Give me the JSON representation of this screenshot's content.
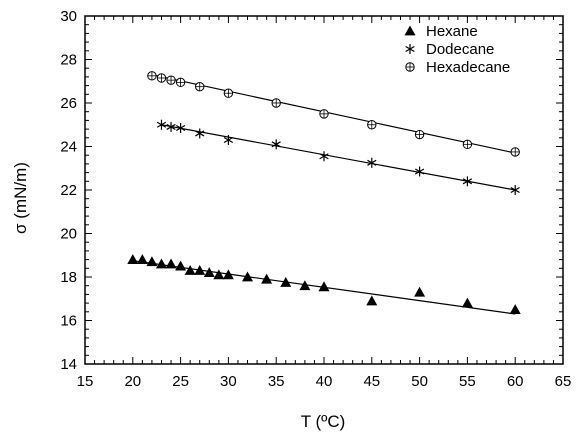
{
  "chart_data": {
    "type": "scatter",
    "title": "",
    "xlabel": "T (ºC)",
    "ylabel": "σ (mN/m)",
    "xlim": [
      15,
      65
    ],
    "ylim": [
      14,
      30
    ],
    "x_ticks": [
      15,
      20,
      25,
      30,
      35,
      40,
      45,
      50,
      55,
      60,
      65
    ],
    "y_ticks": [
      14,
      16,
      18,
      20,
      22,
      24,
      26,
      28,
      30
    ],
    "x_tick_labels": [
      "15",
      "20",
      "25",
      "30",
      "35",
      "40",
      "45",
      "50",
      "55",
      "60",
      "65"
    ],
    "y_tick_labels": [
      "14",
      "16",
      "18",
      "20",
      "22",
      "24",
      "26",
      "28",
      "30"
    ],
    "grid": false,
    "legend_position": "top-right",
    "series": [
      {
        "name": "Hexane",
        "marker": "filled-triangle",
        "points": [
          [
            20,
            18.8
          ],
          [
            21,
            18.8
          ],
          [
            22,
            18.7
          ],
          [
            23,
            18.6
          ],
          [
            24,
            18.6
          ],
          [
            25,
            18.5
          ],
          [
            26,
            18.3
          ],
          [
            27,
            18.3
          ],
          [
            28,
            18.2
          ],
          [
            29,
            18.1
          ],
          [
            30,
            18.1
          ],
          [
            32,
            18.0
          ],
          [
            34,
            17.9
          ],
          [
            36,
            17.75
          ],
          [
            38,
            17.6
          ],
          [
            40,
            17.55
          ],
          [
            45,
            16.9
          ],
          [
            50,
            17.3
          ],
          [
            55,
            16.8
          ],
          [
            60,
            16.5
          ]
        ],
        "fit": [
          [
            20,
            18.75
          ],
          [
            60,
            16.3
          ]
        ]
      },
      {
        "name": "Dodecane",
        "marker": "asterisk",
        "points": [
          [
            23,
            25.0
          ],
          [
            24,
            24.9
          ],
          [
            25,
            24.85
          ],
          [
            27,
            24.6
          ],
          [
            30,
            24.3
          ],
          [
            35,
            24.1
          ],
          [
            40,
            23.55
          ],
          [
            45,
            23.25
          ],
          [
            50,
            22.85
          ],
          [
            55,
            22.4
          ],
          [
            60,
            22.0
          ]
        ],
        "fit": [
          [
            23,
            25.0
          ],
          [
            60,
            22.0
          ]
        ]
      },
      {
        "name": "Hexadecane",
        "marker": "circle-plus",
        "points": [
          [
            22,
            27.25
          ],
          [
            23,
            27.15
          ],
          [
            24,
            27.05
          ],
          [
            25,
            26.95
          ],
          [
            27,
            26.75
          ],
          [
            30,
            26.45
          ],
          [
            35,
            26.0
          ],
          [
            40,
            25.5
          ],
          [
            45,
            25.0
          ],
          [
            50,
            24.55
          ],
          [
            55,
            24.1
          ],
          [
            60,
            23.75
          ]
        ],
        "fit": [
          [
            22,
            27.3
          ],
          [
            60,
            23.7
          ]
        ]
      }
    ]
  }
}
